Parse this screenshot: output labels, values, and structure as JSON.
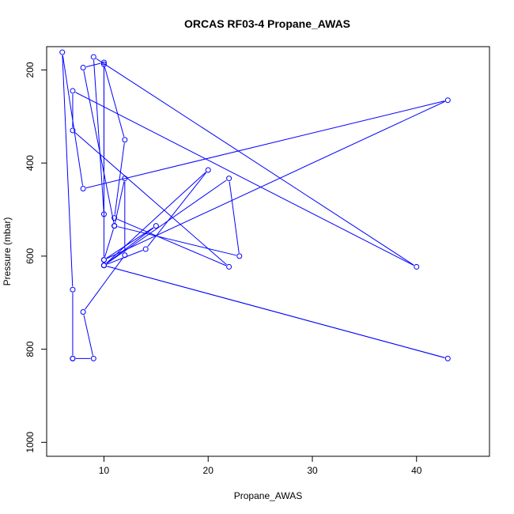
{
  "chart_data": {
    "type": "line",
    "title": "ORCAS RF03-4 Propane_AWAS",
    "xlabel": "Propane_AWAS",
    "ylabel": "Pressure (mbar)",
    "xlim": [
      4.5,
      47
    ],
    "ylim": [
      1030,
      150
    ],
    "y_reversed": true,
    "xticks": [
      10,
      20,
      30,
      40
    ],
    "yticks": [
      200,
      400,
      600,
      800,
      1000
    ],
    "grid": false,
    "color": "#0000ff",
    "points": [
      {
        "x": 7,
        "y": 820
      },
      {
        "x": 9,
        "y": 820
      },
      {
        "x": 8,
        "y": 720
      },
      {
        "x": 12,
        "y": 598
      },
      {
        "x": 12,
        "y": 433
      },
      {
        "x": 11,
        "y": 535
      },
      {
        "x": 11,
        "y": 535
      },
      {
        "x": 23,
        "y": 600
      },
      {
        "x": 22,
        "y": 433
      },
      {
        "x": 10,
        "y": 620
      },
      {
        "x": 43,
        "y": 820
      },
      {
        "x": 10,
        "y": 620
      },
      {
        "x": 14,
        "y": 585
      },
      {
        "x": 20,
        "y": 415
      },
      {
        "x": 10,
        "y": 620
      },
      {
        "x": 15,
        "y": 535
      },
      {
        "x": 10,
        "y": 608
      },
      {
        "x": 10,
        "y": 188
      },
      {
        "x": 12,
        "y": 350
      },
      {
        "x": 11,
        "y": 518
      },
      {
        "x": 22,
        "y": 623
      },
      {
        "x": 7,
        "y": 330
      },
      {
        "x": 7,
        "y": 245
      },
      {
        "x": 40,
        "y": 623
      },
      {
        "x": 9,
        "y": 172
      },
      {
        "x": 10,
        "y": 510
      },
      {
        "x": 10,
        "y": 184
      },
      {
        "x": 8,
        "y": 195
      },
      {
        "x": 11,
        "y": 535
      },
      {
        "x": 10,
        "y": 608
      },
      {
        "x": 43,
        "y": 265
      },
      {
        "x": 8,
        "y": 455
      },
      {
        "x": 6,
        "y": 162
      },
      {
        "x": 7,
        "y": 672
      },
      {
        "x": 7,
        "y": 820
      }
    ]
  }
}
